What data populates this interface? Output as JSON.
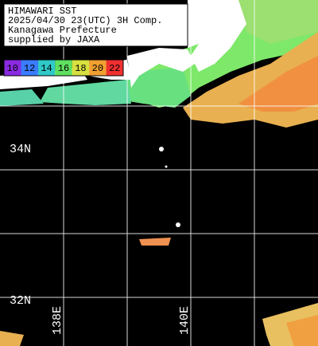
{
  "header": {
    "lines": [
      "HIMAWARI SST",
      "2025/04/30 23(UTC) 3H Comp.",
      "Kanagawa Prefecture",
      "supplied by JAXA"
    ]
  },
  "colorbar": {
    "labels": [
      "10",
      "12",
      "14",
      "16",
      "18",
      "20",
      "22"
    ]
  },
  "latitude_labels": [
    "34N",
    "32N"
  ],
  "longitude_labels": [
    "138E",
    "140E"
  ]
}
